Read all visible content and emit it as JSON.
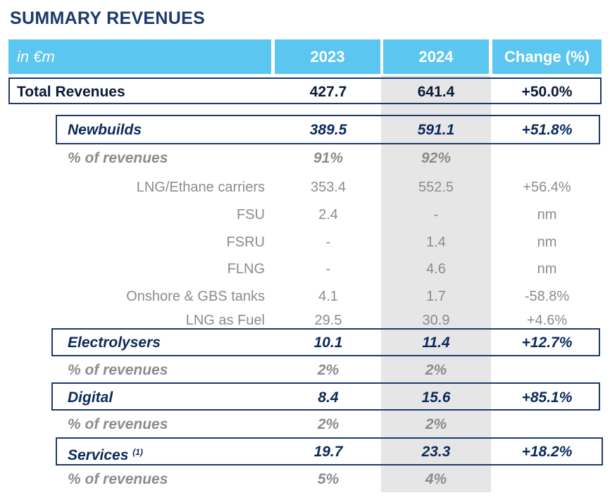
{
  "title": "SUMMARY REVENUES",
  "header": {
    "unit": "in €m",
    "y2023": "2023",
    "y2024": "2024",
    "change": "Change (%)"
  },
  "rows": {
    "total": {
      "label": "Total Revenues",
      "v2023": "427.7",
      "v2024": "641.4",
      "change": "+50.0%"
    },
    "newbuilds": {
      "label": "Newbuilds",
      "v2023": "389.5",
      "v2024": "591.1",
      "change": "+51.8%"
    },
    "newbuilds_pct": {
      "label": "% of revenues",
      "v2023": "91%",
      "v2024": "92%"
    },
    "lng_ethane": {
      "label": "LNG/Ethane carriers",
      "v2023": "353.4",
      "v2024": "552.5",
      "change": "+56.4%"
    },
    "fsu": {
      "label": "FSU",
      "v2023": "2.4",
      "v2024": "-",
      "change": "nm"
    },
    "fsru": {
      "label": "FSRU",
      "v2023": "-",
      "v2024": "1.4",
      "change": "nm"
    },
    "flng": {
      "label": "FLNG",
      "v2023": "-",
      "v2024": "4.6",
      "change": "nm"
    },
    "onshore": {
      "label": "Onshore & GBS tanks",
      "v2023": "4.1",
      "v2024": "1.7",
      "change": "-58.8%"
    },
    "lng_fuel": {
      "label": "LNG as Fuel",
      "v2023": "29.5",
      "v2024": "30.9",
      "change": "+4.6%"
    },
    "electrolysers": {
      "label": "Electrolysers",
      "v2023": "10.1",
      "v2024": "11.4",
      "change": "+12.7%"
    },
    "electrolysers_pct": {
      "label": "% of revenues",
      "v2023": "2%",
      "v2024": "2%"
    },
    "digital": {
      "label": "Digital",
      "v2023": "8.4",
      "v2024": "15.6",
      "change": "+85.1%"
    },
    "digital_pct": {
      "label": "% of revenues",
      "v2023": "2%",
      "v2024": "2%"
    },
    "services": {
      "label": "Services",
      "footnote": "(1)",
      "v2023": "19.7",
      "v2024": "23.3",
      "change": "+18.2%"
    },
    "services_pct": {
      "label": "% of revenues",
      "v2023": "5%",
      "v2024": "4%"
    }
  }
}
